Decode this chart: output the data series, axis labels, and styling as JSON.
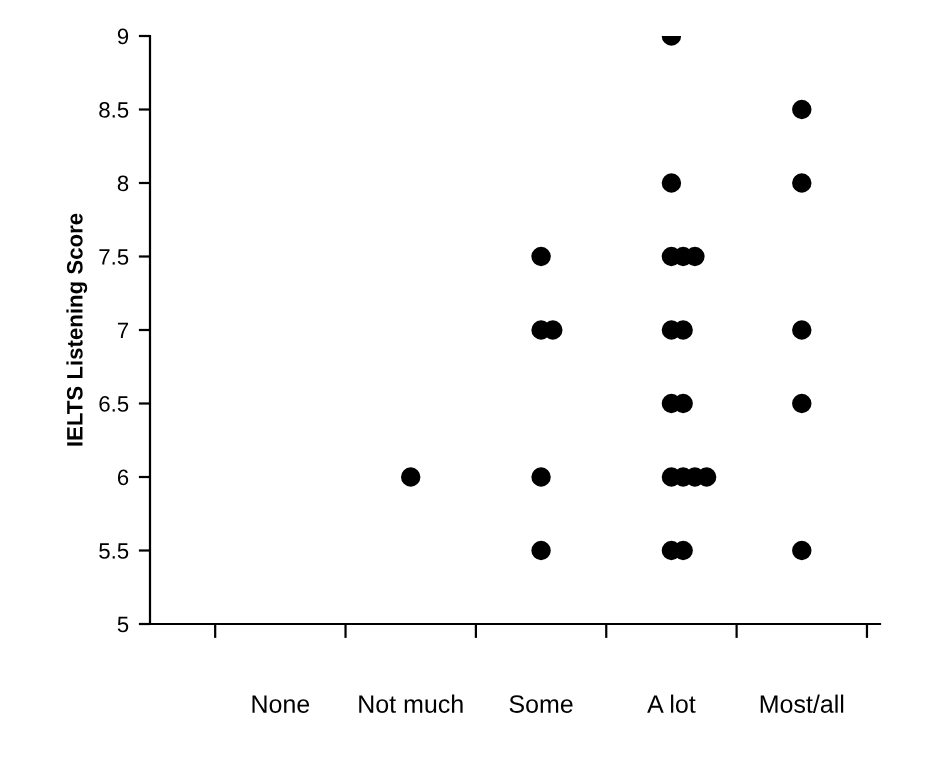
{
  "chart_data": {
    "type": "scatter",
    "ylabel": "IELTS Listening Score",
    "categories": [
      "None",
      "Not much",
      "Some",
      "A lot",
      "Most/all"
    ],
    "series": [
      {
        "color": "#000000",
        "x": [
          "Not much",
          "Some",
          "Some",
          "Some",
          "Some",
          "Some",
          "A lot",
          "A lot",
          "A lot",
          "A lot",
          "A lot",
          "A lot",
          "A lot",
          "A lot",
          "A lot",
          "A lot",
          "A lot",
          "A lot",
          "A lot",
          "A lot",
          "A lot",
          "Most/all",
          "Most/all",
          "Most/all",
          "Most/all",
          "Most/all"
        ],
        "values": [
          6,
          7.5,
          7,
          7,
          6,
          5.5,
          9,
          8,
          7.5,
          7.5,
          7.5,
          7,
          7,
          6.5,
          6.5,
          6,
          6,
          6,
          6,
          5.5,
          5.5,
          8.5,
          8,
          7,
          6.5,
          5.5
        ]
      }
    ],
    "ylim": [
      5,
      9
    ],
    "yticks": [
      5,
      5.5,
      6,
      6.5,
      7,
      7.5,
      8,
      8.5,
      9
    ],
    "marker": "circle",
    "grid": false,
    "legend": false
  }
}
